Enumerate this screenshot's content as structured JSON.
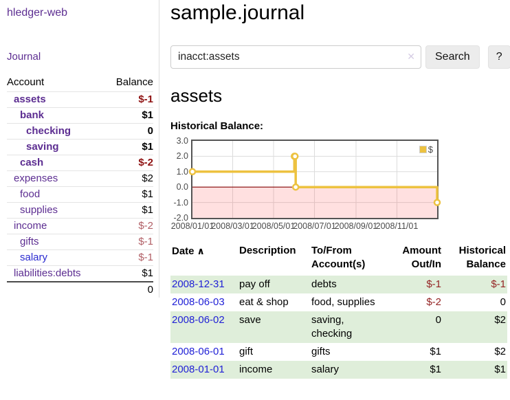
{
  "app": {
    "brand": "hledger-web"
  },
  "colors": {
    "accent_purple": "#5c2d91",
    "link_blue": "#1f1fd6",
    "negative_dark": "#8f1212",
    "negative_soft": "#b15f66",
    "row_shade_green": "#dfeeda",
    "chart_line_gold": "#edc240",
    "chart_negative_fill": "#fcdada",
    "chart_zero_line": "#800000"
  },
  "icons": {
    "clear": "✕",
    "sort_up": "∧"
  },
  "sidebar": {
    "journal_label": "Journal",
    "table": {
      "account_header": "Account",
      "balance_header": "Balance",
      "accounts": [
        {
          "name": "assets",
          "balance": "$-1",
          "level": 1,
          "bold": true,
          "balance_style": "neg-strong"
        },
        {
          "name": "bank",
          "balance": "$1",
          "level": 2,
          "bold": true,
          "balance_style": "pos-strong"
        },
        {
          "name": "checking",
          "balance": "0",
          "level": 3,
          "bold": true,
          "balance_style": "pos-strong"
        },
        {
          "name": "saving",
          "balance": "$1",
          "level": 3,
          "bold": true,
          "balance_style": "pos-strong"
        },
        {
          "name": "cash",
          "balance": "$-2",
          "level": 2,
          "bold": true,
          "balance_style": "neg-strong"
        },
        {
          "name": "expenses",
          "balance": "$2",
          "level": 1,
          "bold": false,
          "balance_style": "pos"
        },
        {
          "name": "food",
          "balance": "$1",
          "level": 2,
          "bold": false,
          "balance_style": "pos"
        },
        {
          "name": "supplies",
          "balance": "$1",
          "level": 2,
          "bold": false,
          "balance_style": "pos"
        },
        {
          "name": "income",
          "balance": "$-2",
          "level": 1,
          "bold": false,
          "balance_style": "neg-soft"
        },
        {
          "name": "gifts",
          "balance": "$-1",
          "level": 2,
          "bold": false,
          "balance_style": "neg-soft"
        },
        {
          "name": "salary",
          "balance": "$-1",
          "level": 2,
          "bold": false,
          "balance_style": "neg-soft",
          "link_color": "blue"
        },
        {
          "name": "liabilities:debts",
          "balance": "$1",
          "level": 1,
          "bold": false,
          "balance_style": "pos"
        }
      ],
      "total": "0"
    }
  },
  "main": {
    "title": "sample.journal",
    "search": {
      "value": "inacct:assets",
      "button_label": "Search",
      "help_label": "?"
    },
    "account_heading": "assets",
    "chart_label": "Historical Balance:",
    "register": {
      "headers": {
        "date": "Date",
        "description": "Description",
        "account_line1": "To/From",
        "account_line2": "Account(s)",
        "amount_line1": "Amount",
        "amount_line2": "Out/In",
        "balance_line1": "Historical",
        "balance_line2": "Balance"
      },
      "rows": [
        {
          "date": "2008-12-31",
          "description": "pay off",
          "account": "debts",
          "amount": "$-1",
          "amount_negative": true,
          "balance": "$-1",
          "balance_negative": true
        },
        {
          "date": "2008-06-03",
          "description": "eat & shop",
          "account": "food, supplies",
          "amount": "$-2",
          "amount_negative": true,
          "balance": "0",
          "balance_negative": false
        },
        {
          "date": "2008-06-02",
          "description": "save",
          "account": "saving, checking",
          "amount": "0",
          "amount_negative": false,
          "balance": "$2",
          "balance_negative": false
        },
        {
          "date": "2008-06-01",
          "description": "gift",
          "account": "gifts",
          "amount": "$1",
          "amount_negative": false,
          "balance": "$2",
          "balance_negative": false
        },
        {
          "date": "2008-01-01",
          "description": "income",
          "account": "salary",
          "amount": "$1",
          "amount_negative": false,
          "balance": "$1",
          "balance_negative": false
        }
      ]
    }
  },
  "chart_data": {
    "type": "line",
    "title": "Historical Balance",
    "step": true,
    "series": [
      {
        "name": "$",
        "color": "#edc240",
        "points": [
          [
            "2008-01-01",
            1
          ],
          [
            "2008-06-01",
            2
          ],
          [
            "2008-06-02",
            2
          ],
          [
            "2008-06-03",
            0
          ],
          [
            "2008-12-31",
            -1
          ]
        ]
      }
    ],
    "x_range": [
      "2008-01-01",
      "2008-12-31"
    ],
    "x_ticks": [
      "2008/01/01",
      "2008/03/01",
      "2008/05/01",
      "2008/07/01",
      "2008/09/01",
      "2008/11/01"
    ],
    "y_ticks": [
      "3.0",
      "2.0",
      "1.0",
      "0.0",
      "-1.0",
      "-2.0"
    ],
    "ylim": [
      -2,
      3
    ],
    "grid": true,
    "legend_position": "top-right",
    "negative_region_fill": "#fcdada",
    "zero_line_color": "#800000"
  }
}
